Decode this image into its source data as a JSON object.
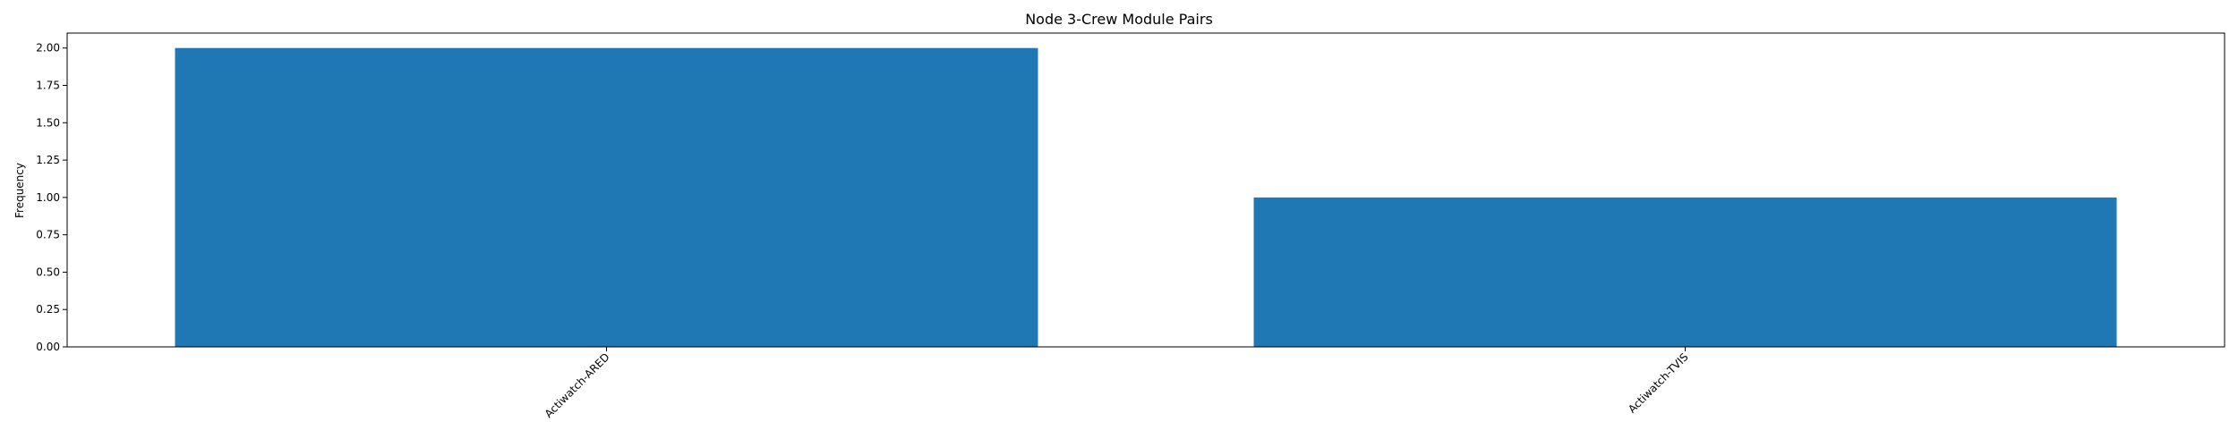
{
  "chart_data": {
    "type": "bar",
    "title": "Node 3-Crew Module Pairs",
    "xlabel": "",
    "ylabel": "Frequency",
    "categories": [
      "Actiwatch-ARED",
      "Actiwatch-TVIS"
    ],
    "values": [
      2,
      1
    ],
    "ylim": [
      0,
      2.1
    ],
    "yticks": [
      "0.00",
      "0.25",
      "0.50",
      "0.75",
      "1.00",
      "1.25",
      "1.50",
      "1.75",
      "2.00"
    ],
    "bar_color": "#1f77b4",
    "grid": false,
    "legend": "none"
  }
}
